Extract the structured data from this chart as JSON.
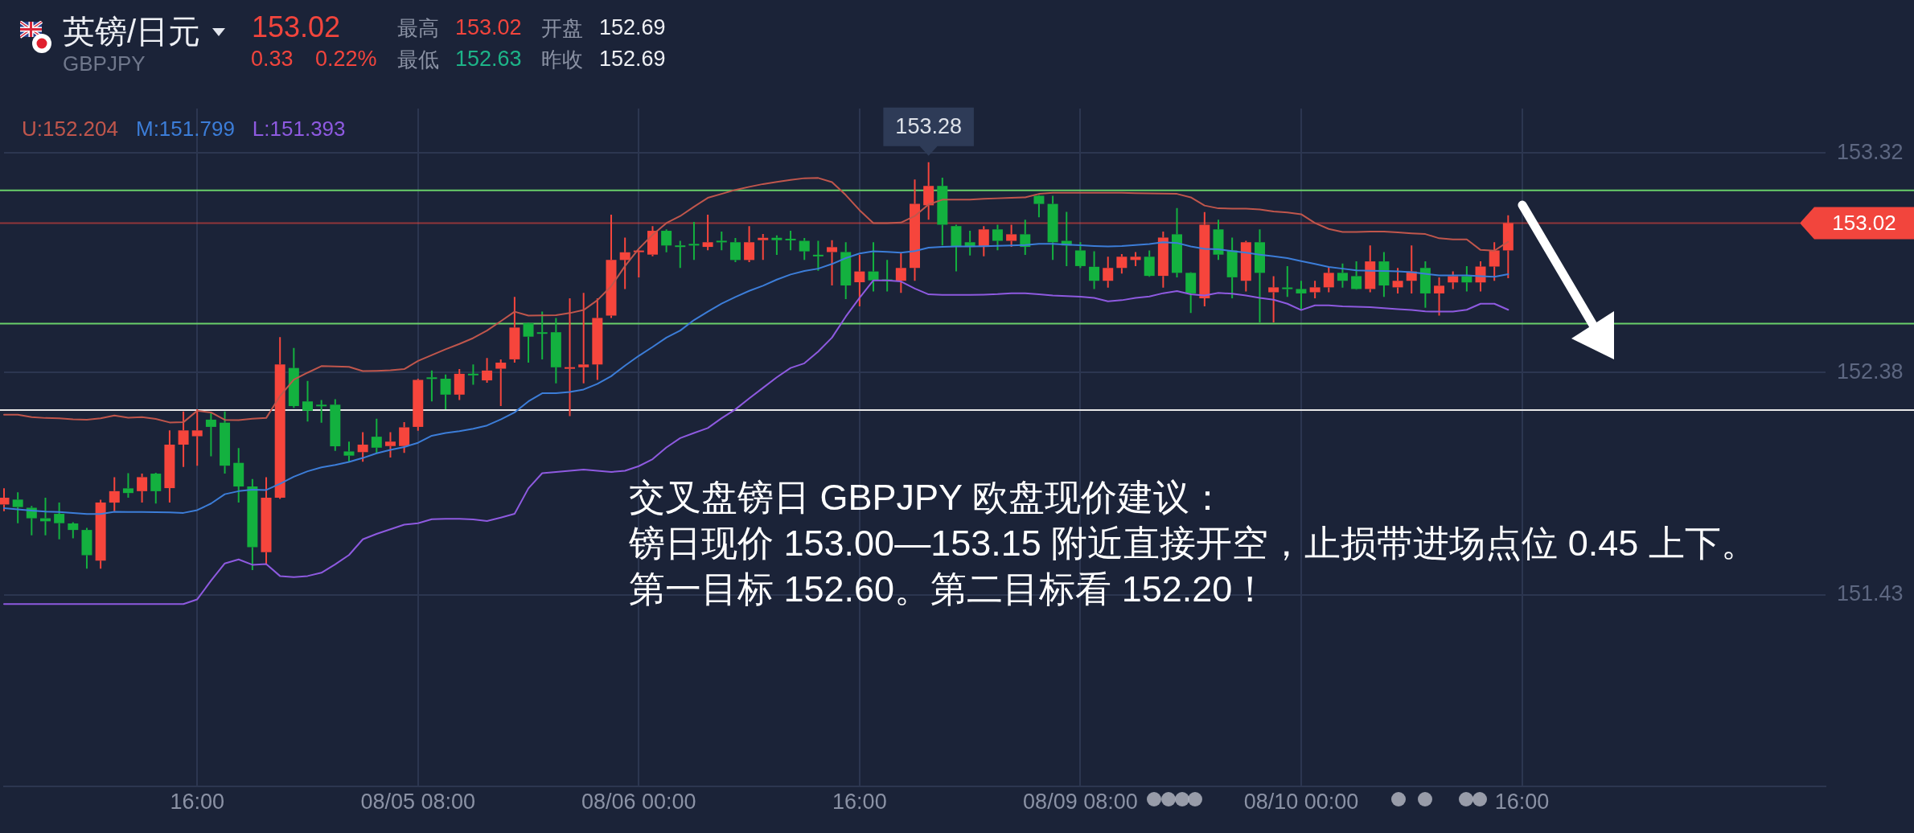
{
  "chart_data": {
    "type": "candlestick",
    "title": "英镑/日元",
    "subtitle": "GBPJPY",
    "categories": [
      null,
      null,
      null,
      null,
      null,
      null,
      null,
      null,
      null,
      null,
      null,
      null,
      null,
      null,
      "16:00",
      null,
      null,
      null,
      null,
      null,
      null,
      null,
      null,
      null,
      null,
      null,
      null,
      null,
      null,
      null,
      "08/05 08:00",
      null,
      null,
      null,
      null,
      null,
      null,
      null,
      null,
      null,
      null,
      null,
      null,
      null,
      null,
      null,
      "08/06 00:00",
      null,
      null,
      null,
      null,
      null,
      null,
      null,
      null,
      null,
      null,
      null,
      null,
      null,
      null,
      null,
      "16:00",
      null,
      null,
      null,
      null,
      null,
      null,
      null,
      null,
      null,
      null,
      null,
      null,
      null,
      null,
      null,
      "08/09 08:00",
      null,
      null,
      null,
      null,
      null,
      null,
      null,
      null,
      null,
      null,
      null,
      null,
      null,
      null,
      null,
      "08/10 00:00",
      null,
      null,
      null,
      null,
      null,
      null,
      null,
      null,
      null,
      null,
      null,
      null,
      null,
      null,
      null,
      "16:00",
      null,
      null,
      null,
      null,
      null,
      null,
      null,
      null,
      null,
      null,
      null,
      null,
      null,
      null,
      null,
      null,
      null,
      null,
      null,
      null,
      null,
      null
    ],
    "ohlc": [
      [
        151.816,
        151.885,
        151.787,
        151.845
      ],
      [
        151.837,
        151.868,
        151.736,
        151.805
      ],
      [
        151.802,
        151.81,
        151.684,
        151.757
      ],
      [
        151.757,
        151.845,
        151.684,
        151.744
      ],
      [
        151.776,
        151.824,
        151.667,
        151.736
      ],
      [
        151.735,
        151.74,
        151.671,
        151.707
      ],
      [
        151.707,
        151.716,
        151.541,
        151.599
      ],
      [
        151.576,
        151.836,
        151.541,
        151.824
      ],
      [
        151.824,
        151.933,
        151.787,
        151.873
      ],
      [
        151.885,
        151.95,
        151.845,
        151.865
      ],
      [
        151.873,
        151.948,
        151.824,
        151.933
      ],
      [
        151.948,
        151.952,
        151.82,
        151.873
      ],
      [
        151.886,
        152.133,
        151.824,
        152.072
      ],
      [
        152.072,
        152.214,
        151.977,
        152.133
      ],
      [
        152.108,
        152.223,
        151.982,
        152.133
      ],
      [
        152.179,
        152.206,
        152.022,
        152.148
      ],
      [
        152.166,
        152.214,
        151.948,
        151.982
      ],
      [
        151.994,
        152.057,
        151.824,
        151.893
      ],
      [
        151.893,
        151.925,
        151.535,
        151.633
      ],
      [
        151.612,
        151.933,
        151.558,
        151.845
      ],
      [
        151.845,
        152.532,
        151.84,
        152.415
      ],
      [
        152.4,
        152.486,
        152.229,
        152.237
      ],
      [
        152.257,
        152.345,
        152.171,
        152.217
      ],
      [
        152.242,
        152.263,
        152.166,
        152.237
      ],
      [
        152.243,
        152.266,
        152.045,
        152.065
      ],
      [
        152.043,
        152.085,
        151.999,
        152.025
      ],
      [
        152.04,
        152.125,
        151.999,
        152.072
      ],
      [
        152.106,
        152.183,
        152.036,
        152.059
      ],
      [
        152.066,
        152.125,
        152.017,
        152.085
      ],
      [
        152.066,
        152.168,
        152.037,
        152.146
      ],
      [
        152.148,
        152.354,
        152.131,
        152.349
      ],
      [
        152.36,
        152.389,
        152.257,
        152.353
      ],
      [
        152.354,
        152.372,
        152.223,
        152.286
      ],
      [
        152.286,
        152.395,
        152.263,
        152.375
      ],
      [
        152.375,
        152.415,
        152.328,
        152.369
      ],
      [
        152.347,
        152.443,
        152.337,
        152.389
      ],
      [
        152.397,
        152.437,
        152.237,
        152.423
      ],
      [
        152.437,
        152.704,
        152.423,
        152.573
      ],
      [
        152.592,
        152.595,
        152.423,
        152.534
      ],
      [
        152.552,
        152.641,
        152.437,
        152.547
      ],
      [
        152.553,
        152.614,
        152.334,
        152.403
      ],
      [
        152.397,
        152.698,
        152.194,
        152.403
      ],
      [
        152.403,
        152.721,
        152.334,
        152.415
      ],
      [
        152.415,
        152.698,
        152.349,
        152.614
      ],
      [
        152.624,
        153.056,
        152.614,
        152.862
      ],
      [
        152.862,
        152.958,
        152.738,
        152.895
      ],
      [
        152.896,
        152.904,
        152.788,
        152.902
      ],
      [
        152.885,
        153.007,
        152.878,
        152.987
      ],
      [
        152.987,
        152.993,
        152.895,
        152.924
      ],
      [
        152.924,
        152.944,
        152.828,
        152.918
      ],
      [
        152.931,
        153.025,
        152.862,
        152.924
      ],
      [
        152.918,
        153.056,
        152.904,
        152.938
      ],
      [
        152.944,
        152.984,
        152.904,
        152.938
      ],
      [
        152.938,
        152.956,
        152.853,
        152.862
      ],
      [
        152.862,
        153.007,
        152.853,
        152.938
      ],
      [
        152.947,
        152.973,
        152.862,
        152.957
      ],
      [
        152.957,
        152.967,
        152.884,
        152.947
      ],
      [
        152.952,
        152.987,
        152.904,
        152.947
      ],
      [
        152.944,
        152.956,
        152.862,
        152.899
      ],
      [
        152.884,
        152.944,
        152.816,
        152.878
      ],
      [
        152.896,
        152.947,
        152.753,
        152.917
      ],
      [
        152.896,
        152.938,
        152.695,
        152.753
      ],
      [
        152.767,
        152.884,
        152.664,
        152.813
      ],
      [
        152.813,
        152.938,
        152.727,
        152.775
      ],
      [
        152.778,
        152.862,
        152.727,
        152.773
      ],
      [
        152.773,
        152.893,
        152.721,
        152.828
      ],
      [
        152.828,
        153.206,
        152.773,
        153.102
      ],
      [
        153.096,
        153.28,
        153.034,
        153.179
      ],
      [
        153.179,
        153.214,
        152.924,
        153.013
      ],
      [
        153.007,
        153.013,
        152.813,
        152.918
      ],
      [
        152.938,
        152.987,
        152.881,
        152.918
      ],
      [
        152.918,
        153.007,
        152.878,
        152.993
      ],
      [
        152.993,
        153.013,
        152.904,
        152.944
      ],
      [
        152.944,
        153.013,
        152.918,
        152.972
      ],
      [
        152.972,
        153.034,
        152.884,
        152.918
      ],
      [
        153.137,
        153.14,
        153.045,
        153.102
      ],
      [
        153.102,
        153.137,
        152.862,
        152.938
      ],
      [
        152.944,
        153.068,
        152.836,
        152.924
      ],
      [
        152.903,
        152.938,
        152.828,
        152.836
      ],
      [
        152.833,
        152.899,
        152.738,
        152.773
      ],
      [
        152.773,
        152.876,
        152.744,
        152.828
      ],
      [
        152.828,
        152.887,
        152.804,
        152.876
      ],
      [
        152.862,
        152.896,
        152.836,
        152.876
      ],
      [
        152.876,
        152.903,
        152.79,
        152.794
      ],
      [
        152.794,
        152.984,
        152.744,
        152.958
      ],
      [
        152.972,
        153.084,
        152.788,
        152.807
      ],
      [
        152.807,
        152.81,
        152.635,
        152.719
      ],
      [
        152.698,
        153.067,
        152.664,
        153.013
      ],
      [
        152.993,
        153.034,
        152.862,
        152.885
      ],
      [
        152.903,
        152.958,
        152.698,
        152.788
      ],
      [
        152.773,
        152.944,
        152.727,
        152.938
      ],
      [
        152.938,
        152.993,
        152.595,
        152.807
      ],
      [
        152.724,
        152.793,
        152.595,
        152.745
      ],
      [
        152.744,
        152.836,
        152.704,
        152.738
      ],
      [
        152.738,
        152.773,
        152.647,
        152.719
      ],
      [
        152.724,
        152.773,
        152.698,
        152.745
      ],
      [
        152.745,
        152.832,
        152.724,
        152.807
      ],
      [
        152.807,
        152.847,
        152.744,
        152.773
      ],
      [
        152.793,
        152.856,
        152.735,
        152.738
      ],
      [
        152.738,
        152.924,
        152.724,
        152.856
      ],
      [
        152.856,
        152.896,
        152.704,
        152.753
      ],
      [
        152.745,
        152.828,
        152.719,
        152.773
      ],
      [
        152.773,
        152.924,
        152.719,
        152.813
      ],
      [
        152.828,
        152.856,
        152.658,
        152.719
      ],
      [
        152.719,
        152.788,
        152.624,
        152.752
      ],
      [
        152.766,
        152.813,
        152.738,
        152.793
      ],
      [
        152.793,
        152.836,
        152.727,
        152.766
      ],
      [
        152.766,
        152.856,
        152.727,
        152.834
      ],
      [
        152.834,
        152.938,
        152.773,
        152.903
      ],
      [
        152.903,
        153.053,
        152.784,
        153.02
      ],
      null,
      null,
      null,
      null,
      null,
      null,
      null,
      null,
      null,
      null,
      null,
      null,
      null,
      null,
      null,
      null,
      null,
      null,
      null,
      null,
      null,
      null,
      null
    ],
    "colors": [
      "#f6453c",
      "#13b13f",
      "#13b13f",
      "#13b13f",
      "#13b13f",
      "#13b13f",
      "#13b13f",
      "#f6453c",
      "#f6453c",
      "#13b13f",
      "#f6453c",
      "#13b13f",
      "#f6453c",
      "#f6453c",
      "#f6453c",
      "#13b13f",
      "#13b13f",
      "#13b13f",
      "#13b13f",
      "#f6453c",
      "#f6453c",
      "#13b13f",
      "#13b13f",
      "#13b13f",
      "#13b13f",
      "#13b13f",
      "#f6453c",
      "#13b13f",
      "#f6453c",
      "#f6453c",
      "#f6453c",
      "#13b13f",
      "#13b13f",
      "#f6453c",
      "#13b13f",
      "#f6453c",
      "#f6453c",
      "#f6453c",
      "#13b13f",
      "#13b13f",
      "#13b13f",
      "#f6453c",
      "#f6453c",
      "#f6453c",
      "#f6453c",
      "#f6453c",
      "#f6453c",
      "#f6453c",
      "#13b13f",
      "#13b13f",
      "#13b13f",
      "#f6453c",
      "#13b13f",
      "#13b13f",
      "#f6453c",
      "#f6453c",
      "#13b13f",
      "#13b13f",
      "#13b13f",
      "#13b13f",
      "#f6453c",
      "#13b13f",
      "#f6453c",
      "#13b13f",
      "#13b13f",
      "#f6453c",
      "#f6453c",
      "#f6453c",
      "#13b13f",
      "#13b13f",
      "#13b13f",
      "#f6453c",
      "#13b13f",
      "#f6453c",
      "#13b13f",
      "#13b13f",
      "#13b13f",
      "#13b13f",
      "#13b13f",
      "#13b13f",
      "#f6453c",
      "#f6453c",
      "#f6453c",
      "#13b13f",
      "#f6453c",
      "#13b13f",
      "#13b13f",
      "#f6453c",
      "#13b13f",
      "#13b13f",
      "#f6453c",
      "#13b13f",
      "#f6453c",
      "#13b13f",
      "#13b13f",
      "#f6453c",
      "#f6453c",
      "#13b13f",
      "#13b13f",
      "#f6453c",
      "#13b13f",
      "#f6453c",
      "#f6453c",
      "#13b13f",
      "#f6453c",
      "#f6453c",
      "#13b13f",
      "#f6453c",
      "#f6453c",
      "#f6453c",
      null,
      null,
      null,
      null,
      null,
      null,
      null,
      null,
      null,
      null,
      null,
      null,
      null,
      null,
      null,
      null,
      null,
      null,
      null,
      null,
      null,
      null,
      null
    ],
    "series": [
      {
        "name": "U:152.204",
        "type": "line",
        "color": "#c0564c",
        "values": [
          152.2,
          152.2,
          152.19,
          152.186,
          152.185,
          152.18,
          152.179,
          152.185,
          152.197,
          152.187,
          152.19,
          152.182,
          152.167,
          152.168,
          152.217,
          152.21,
          152.178,
          152.177,
          152.183,
          152.186,
          152.28,
          152.35,
          152.38,
          152.408,
          152.407,
          152.405,
          152.387,
          152.388,
          152.39,
          152.395,
          152.43,
          152.455,
          152.48,
          152.503,
          152.528,
          152.56,
          152.6,
          152.641,
          152.624,
          152.625,
          152.626,
          152.635,
          152.648,
          152.69,
          152.75,
          152.836,
          152.91,
          152.97,
          153.02,
          153.05,
          153.09,
          153.128,
          153.145,
          153.162,
          153.175,
          153.187,
          153.196,
          153.205,
          153.212,
          153.213,
          153.195,
          153.14,
          153.075,
          153.02,
          153.02,
          153.022,
          153.05,
          153.1,
          153.12,
          153.12,
          153.12,
          153.124,
          153.126,
          153.128,
          153.13,
          153.145,
          153.15,
          153.15,
          153.15,
          153.15,
          153.15,
          153.15,
          153.148,
          153.147,
          153.146,
          153.145,
          153.13,
          153.095,
          153.083,
          153.082,
          153.082,
          153.078,
          153.07,
          153.065,
          153.058,
          153.02,
          152.995,
          152.982,
          152.982,
          152.984,
          152.984,
          152.98,
          152.976,
          152.973,
          152.955,
          152.95,
          152.95,
          152.905,
          152.902,
          152.94,
          null,
          null,
          null,
          null,
          null,
          null,
          null,
          null,
          null,
          null,
          null,
          null,
          null,
          null,
          null,
          null,
          null,
          null,
          null,
          null,
          null,
          null,
          null
        ]
      },
      {
        "name": "M:151.799",
        "type": "line",
        "color": "#3c7dd8",
        "values": [
          151.8,
          151.795,
          151.79,
          151.786,
          151.784,
          151.78,
          151.775,
          151.775,
          151.785,
          151.784,
          151.784,
          151.783,
          151.782,
          151.78,
          151.792,
          151.82,
          151.86,
          151.873,
          151.879,
          151.878,
          151.905,
          151.935,
          151.958,
          151.975,
          151.985,
          151.998,
          152.015,
          152.035,
          152.05,
          152.062,
          152.08,
          152.11,
          152.122,
          152.13,
          152.14,
          152.154,
          152.18,
          152.21,
          152.257,
          152.292,
          152.292,
          152.297,
          152.308,
          152.332,
          152.365,
          152.41,
          152.452,
          152.49,
          152.53,
          152.56,
          152.605,
          152.641,
          152.675,
          152.704,
          152.73,
          152.752,
          152.778,
          152.8,
          152.815,
          152.825,
          152.845,
          152.87,
          152.89,
          152.899,
          152.897,
          152.893,
          152.9,
          152.915,
          152.918,
          152.92,
          152.92,
          152.921,
          152.923,
          152.924,
          152.926,
          152.931,
          152.931,
          152.928,
          152.925,
          152.922,
          152.92,
          152.922,
          152.926,
          152.93,
          152.938,
          152.935,
          152.92,
          152.91,
          152.908,
          152.9,
          152.893,
          152.885,
          152.878,
          152.87,
          152.857,
          152.845,
          152.832,
          152.825,
          152.818,
          152.816,
          152.815,
          152.813,
          152.81,
          152.803,
          152.796,
          152.796,
          152.796,
          152.793,
          152.79,
          152.801,
          null,
          null,
          null,
          null,
          null,
          null,
          null,
          null,
          null,
          null,
          null,
          null,
          null,
          null,
          null,
          null,
          null,
          null,
          null,
          null,
          null,
          null,
          null
        ]
      },
      {
        "name": "L:151.393",
        "type": "line",
        "color": "#8e5ae0",
        "values": [
          151.39,
          151.39,
          151.39,
          151.39,
          151.39,
          151.39,
          151.39,
          151.39,
          151.39,
          151.39,
          151.39,
          151.39,
          151.39,
          151.39,
          151.41,
          151.49,
          151.564,
          151.581,
          151.558,
          151.561,
          151.51,
          151.505,
          151.51,
          151.524,
          151.56,
          151.6,
          151.667,
          151.69,
          151.71,
          151.73,
          151.736,
          151.753,
          151.755,
          151.755,
          151.752,
          151.745,
          151.76,
          151.776,
          151.885,
          151.95,
          151.955,
          151.96,
          151.965,
          151.96,
          151.955,
          151.96,
          151.98,
          152.01,
          152.06,
          152.1,
          152.122,
          152.143,
          152.185,
          152.223,
          152.27,
          152.315,
          152.36,
          152.4,
          152.42,
          152.47,
          152.53,
          152.62,
          152.7,
          152.775,
          152.775,
          152.77,
          152.74,
          152.715,
          152.713,
          152.713,
          152.713,
          152.714,
          152.716,
          152.72,
          152.72,
          152.715,
          152.71,
          152.708,
          152.705,
          152.7,
          152.685,
          152.69,
          152.7,
          152.706,
          152.72,
          152.729,
          152.715,
          152.71,
          152.721,
          152.718,
          152.71,
          152.7,
          152.692,
          152.675,
          152.648,
          152.668,
          152.668,
          152.664,
          152.662,
          152.66,
          152.656,
          152.652,
          152.648,
          152.642,
          152.641,
          152.641,
          152.649,
          152.675,
          152.675,
          152.649,
          null,
          null,
          null,
          null,
          null,
          null,
          null,
          null,
          null,
          null,
          null,
          null,
          null,
          null,
          null,
          null,
          null,
          null,
          null,
          null,
          null,
          null,
          null
        ]
      }
    ],
    "ylim": [
      150.61,
      153.51
    ],
    "yticks": [
      151.43,
      152.38,
      153.32
    ],
    "grid": true,
    "legend": "top left",
    "ref_lines": [
      {
        "axis": "y",
        "value": 153.16,
        "color": "#6ad06a"
      },
      {
        "axis": "y",
        "value": 153.02,
        "label": "153.02",
        "color": "#f2453d"
      },
      {
        "axis": "y",
        "value": 152.59,
        "color": "#6ad06a"
      },
      {
        "axis": "y",
        "value": 152.22,
        "color": "#e8e8e8"
      }
    ],
    "annotations": [
      "153.02",
      "0.33",
      "0.22%",
      "最高",
      "153.02",
      "最低",
      "152.63",
      "开盘",
      "152.69",
      "昨收",
      "152.69",
      "交叉盘镑日 GBPJPY 欧盘现价建议：",
      "镑日现价 153.00—153.15 附近直接开空，止损带进场点位 0.45 上下。",
      "第一目标 152.60。第二目标看 152.20！",
      {
        "text": "153.28",
        "y": 153.28
      }
    ]
  }
}
